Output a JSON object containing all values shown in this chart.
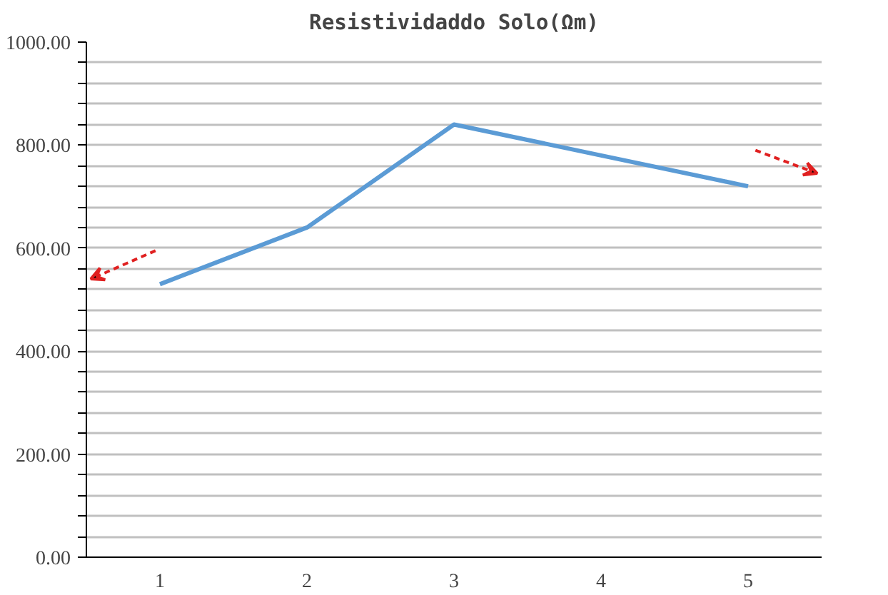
{
  "chart_data": {
    "type": "line",
    "title": "Resistividaddo Solo(Ωm)",
    "categories": [
      "1",
      "2",
      "3",
      "4",
      "5"
    ],
    "series": [
      {
        "color": "#5b9bd5",
        "values": [
          530,
          640,
          840,
          780,
          720
        ]
      }
    ],
    "ylim": [
      0,
      1000
    ],
    "yticks": [
      {
        "value": 0,
        "label": "0.00"
      },
      {
        "value": 40,
        "label": null
      },
      {
        "value": 80,
        "label": null
      },
      {
        "value": 120,
        "label": null
      },
      {
        "value": 160,
        "label": null
      },
      {
        "value": 200,
        "label": "200.00"
      },
      {
        "value": 240,
        "label": null
      },
      {
        "value": 280,
        "label": null
      },
      {
        "value": 320,
        "label": null
      },
      {
        "value": 360,
        "label": null
      },
      {
        "value": 400,
        "label": "400.00"
      },
      {
        "value": 440,
        "label": null
      },
      {
        "value": 480,
        "label": null
      },
      {
        "value": 520,
        "label": null
      },
      {
        "value": 560,
        "label": null
      },
      {
        "value": 600,
        "label": "600.00"
      },
      {
        "value": 640,
        "label": null
      },
      {
        "value": 680,
        "label": null
      },
      {
        "value": 720,
        "label": null
      },
      {
        "value": 760,
        "label": null
      },
      {
        "value": 800,
        "label": "800.00"
      },
      {
        "value": 840,
        "label": null
      },
      {
        "value": 880,
        "label": null
      },
      {
        "value": 920,
        "label": null
      },
      {
        "value": 960,
        "label": null
      },
      {
        "value": 1000,
        "label": "1000.00"
      }
    ],
    "grid": "y",
    "marker": "none",
    "line_style": "solid"
  }
}
